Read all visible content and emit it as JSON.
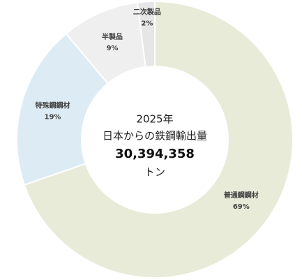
{
  "chart_data": {
    "type": "donut",
    "center_text": [
      "2025年",
      "日本からの鉄鋼輸出量"
    ],
    "total": "30,394,358",
    "unit": "トン",
    "categories": [
      "普通鋼鋼材",
      "特殊鋼鋼材",
      "半製品",
      "二次製品"
    ],
    "values": [
      69,
      19,
      9,
      2
    ],
    "value_labels": [
      "69%",
      "19%",
      "9%",
      "2%"
    ],
    "colors": [
      "#e7ebd8",
      "#ddebf4",
      "#efefef",
      "#e6e6e6"
    ]
  }
}
